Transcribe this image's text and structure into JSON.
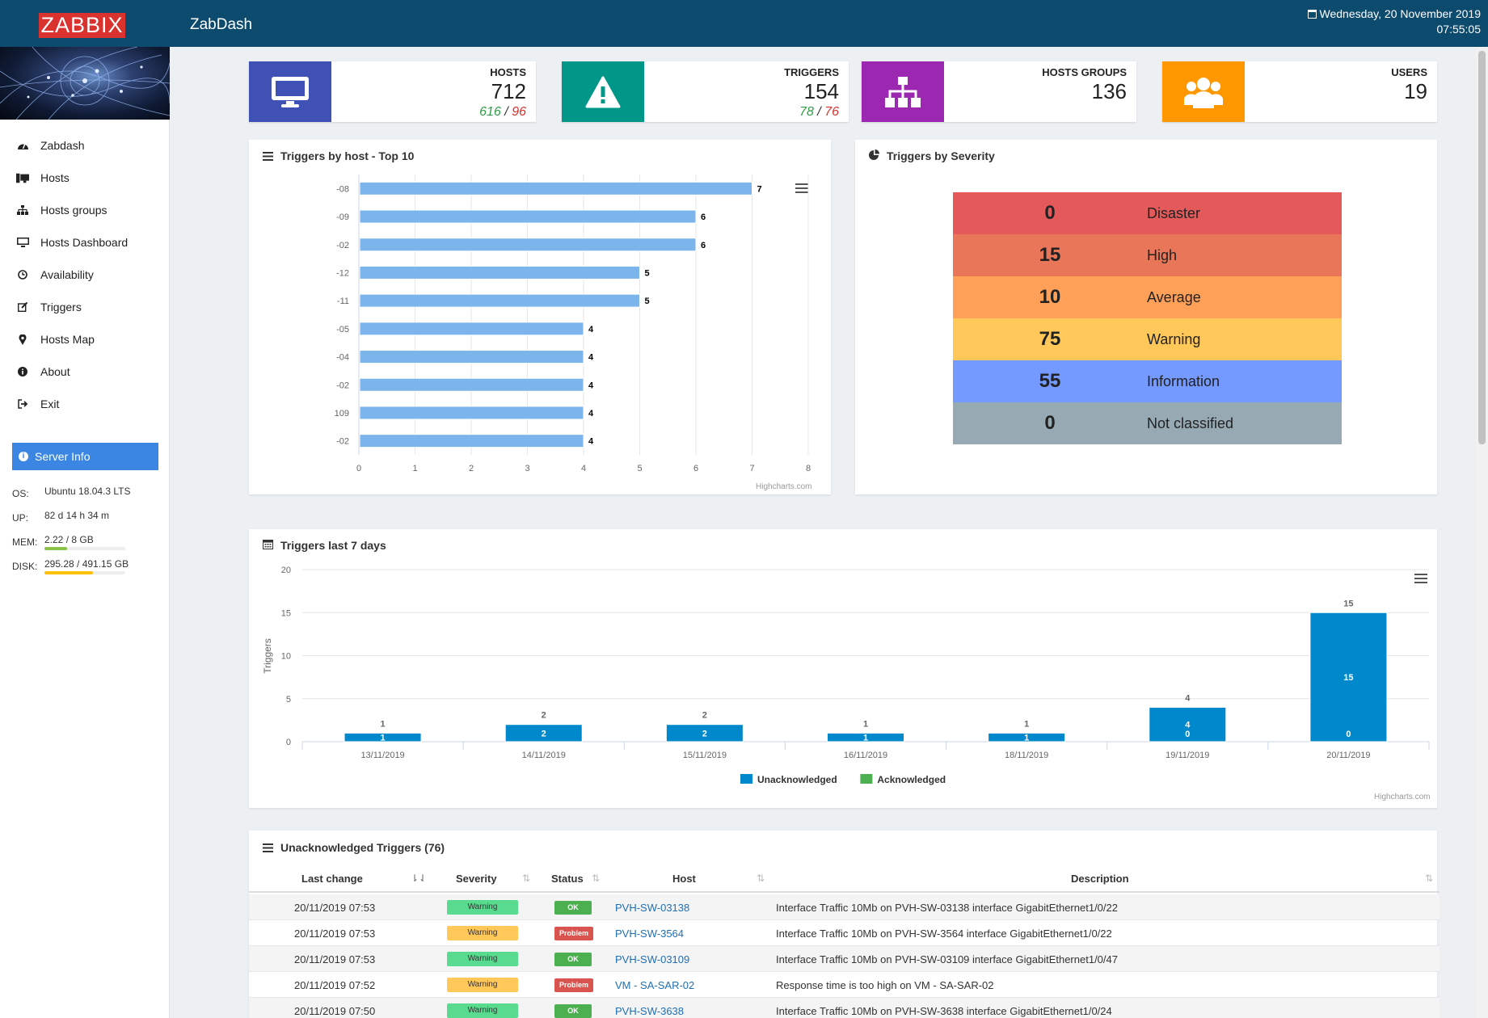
{
  "header": {
    "logo": "ZABBIX",
    "app_title": "ZabDash",
    "date": "Wednesday, 20 November 2019",
    "time": "07:55:05"
  },
  "sidebar": {
    "items": [
      {
        "label": "Zabdash",
        "icon": "dashboard-icon"
      },
      {
        "label": "Hosts",
        "icon": "hosts-icon"
      },
      {
        "label": "Hosts groups",
        "icon": "sitemap-icon"
      },
      {
        "label": "Hosts Dashboard",
        "icon": "monitor-icon"
      },
      {
        "label": "Availability",
        "icon": "clock-icon"
      },
      {
        "label": "Triggers",
        "icon": "edit-icon"
      },
      {
        "label": "Hosts Map",
        "icon": "map-marker-icon"
      },
      {
        "label": "About",
        "icon": "info-icon"
      },
      {
        "label": "Exit",
        "icon": "sign-out-icon"
      }
    ],
    "server_info_label": "Server Info",
    "server": {
      "os_label": "OS:",
      "os": "Ubuntu 18.04.3 LTS",
      "up_label": "UP:",
      "up": "82 d 14 h 34 m",
      "mem_label": "MEM:",
      "mem": "2.22 / 8 GB",
      "mem_fraction": 0.28,
      "disk_label": "DISK:",
      "disk": "295.28 / 491.15 GB",
      "disk_fraction": 0.6
    }
  },
  "cards": [
    {
      "label": "HOSTS",
      "value": "712",
      "sub_ok": "616",
      "sub_bad": "96",
      "color": "#3f51b5",
      "icon": "monitor-icon"
    },
    {
      "label": "TRIGGERS",
      "value": "154",
      "sub_ok": "78",
      "sub_bad": "76",
      "color": "#009688",
      "icon": "warning-icon"
    },
    {
      "label": "HOSTS GROUPS",
      "value": "136",
      "color": "#9c27b0",
      "icon": "sitemap-icon"
    },
    {
      "label": "USERS",
      "value": "19",
      "color": "#ff9800",
      "icon": "users-icon"
    }
  ],
  "sub_separator": "/",
  "panels": {
    "top_hosts_title": "Triggers by host - Top 10",
    "severity_title": "Triggers by Severity",
    "last7_title": "Triggers last 7 days",
    "unack_title": "Unacknowledged Triggers (76)",
    "credit": "Highcharts.com"
  },
  "chart_data": [
    {
      "type": "bar",
      "title": "Triggers by host - Top 10",
      "orientation": "horizontal",
      "categories": [
        "-08",
        "-09",
        "-02",
        "-12",
        "-11",
        "-05",
        "-04",
        "-02",
        "109",
        "-02"
      ],
      "values": [
        7,
        6,
        6,
        5,
        5,
        4,
        4,
        4,
        4,
        4
      ],
      "xlim": [
        0,
        8
      ],
      "ticks": [
        "0",
        "1",
        "2",
        "3",
        "4",
        "5",
        "6",
        "7",
        "8"
      ],
      "color": "#7cb5ec",
      "grid": true
    },
    {
      "type": "table",
      "title": "Triggers by Severity",
      "rows": [
        {
          "value": "0",
          "label": "Disaster",
          "color": "#e45959"
        },
        {
          "value": "15",
          "label": "High",
          "color": "#e97659"
        },
        {
          "value": "10",
          "label": "Average",
          "color": "#ffa059"
        },
        {
          "value": "75",
          "label": "Warning",
          "color": "#ffc859"
        },
        {
          "value": "55",
          "label": "Information",
          "color": "#7499ff"
        },
        {
          "value": "0",
          "label": "Not classified",
          "color": "#97aab3"
        }
      ]
    },
    {
      "type": "bar",
      "title": "Triggers last 7 days",
      "ylabel": "Triggers",
      "categories": [
        "13/11/2019",
        "14/11/2019",
        "15/11/2019",
        "16/11/2019",
        "18/11/2019",
        "19/11/2019",
        "20/11/2019"
      ],
      "series": [
        {
          "name": "Unacknowledged",
          "values": [
            1,
            2,
            2,
            1,
            1,
            4,
            15
          ],
          "color": "#0088cc"
        },
        {
          "name": "Acknowledged",
          "values": [
            0,
            0,
            0,
            0,
            0,
            0,
            0
          ],
          "color": "#4caf50"
        }
      ],
      "totals": [
        1,
        2,
        2,
        1,
        1,
        4,
        15
      ],
      "ylim": [
        0,
        20
      ],
      "yticks": [
        "0",
        "5",
        "10",
        "15",
        "20"
      ],
      "legend": "bottom-center",
      "grid": true
    }
  ],
  "table": {
    "columns": [
      "Last change",
      "Severity",
      "Status",
      "Host",
      "Description"
    ],
    "rows": [
      {
        "time": "20/11/2019 07:53",
        "severity": "Warning",
        "sev_color": "#59db8f",
        "status": "OK",
        "st_color": "#4caf50",
        "host": "PVH-SW-03138",
        "desc": "Interface Traffic 10Mb on PVH-SW-03138 interface GigabitEthernet1/0/22"
      },
      {
        "time": "20/11/2019 07:53",
        "severity": "Warning",
        "sev_color": "#ffc859",
        "status": "Problem",
        "st_color": "#d9534f",
        "host": "PVH-SW-3564",
        "desc": "Interface Traffic 10Mb on PVH-SW-3564 interface GigabitEthernet1/0/22"
      },
      {
        "time": "20/11/2019 07:53",
        "severity": "Warning",
        "sev_color": "#59db8f",
        "status": "OK",
        "st_color": "#4caf50",
        "host": "PVH-SW-03109",
        "desc": "Interface Traffic 10Mb on PVH-SW-03109 interface GigabitEthernet1/0/47"
      },
      {
        "time": "20/11/2019 07:52",
        "severity": "Warning",
        "sev_color": "#ffc859",
        "status": "Problem",
        "st_color": "#d9534f",
        "host": "VM - SA-SAR-02",
        "desc": "Response time is too high on VM - SA-SAR-02"
      },
      {
        "time": "20/11/2019 07:50",
        "severity": "Warning",
        "sev_color": "#59db8f",
        "status": "OK",
        "st_color": "#4caf50",
        "host": "PVH-SW-3638",
        "desc": "Interface Traffic 10Mb on PVH-SW-3638 interface GigabitEthernet1/0/24"
      }
    ]
  }
}
